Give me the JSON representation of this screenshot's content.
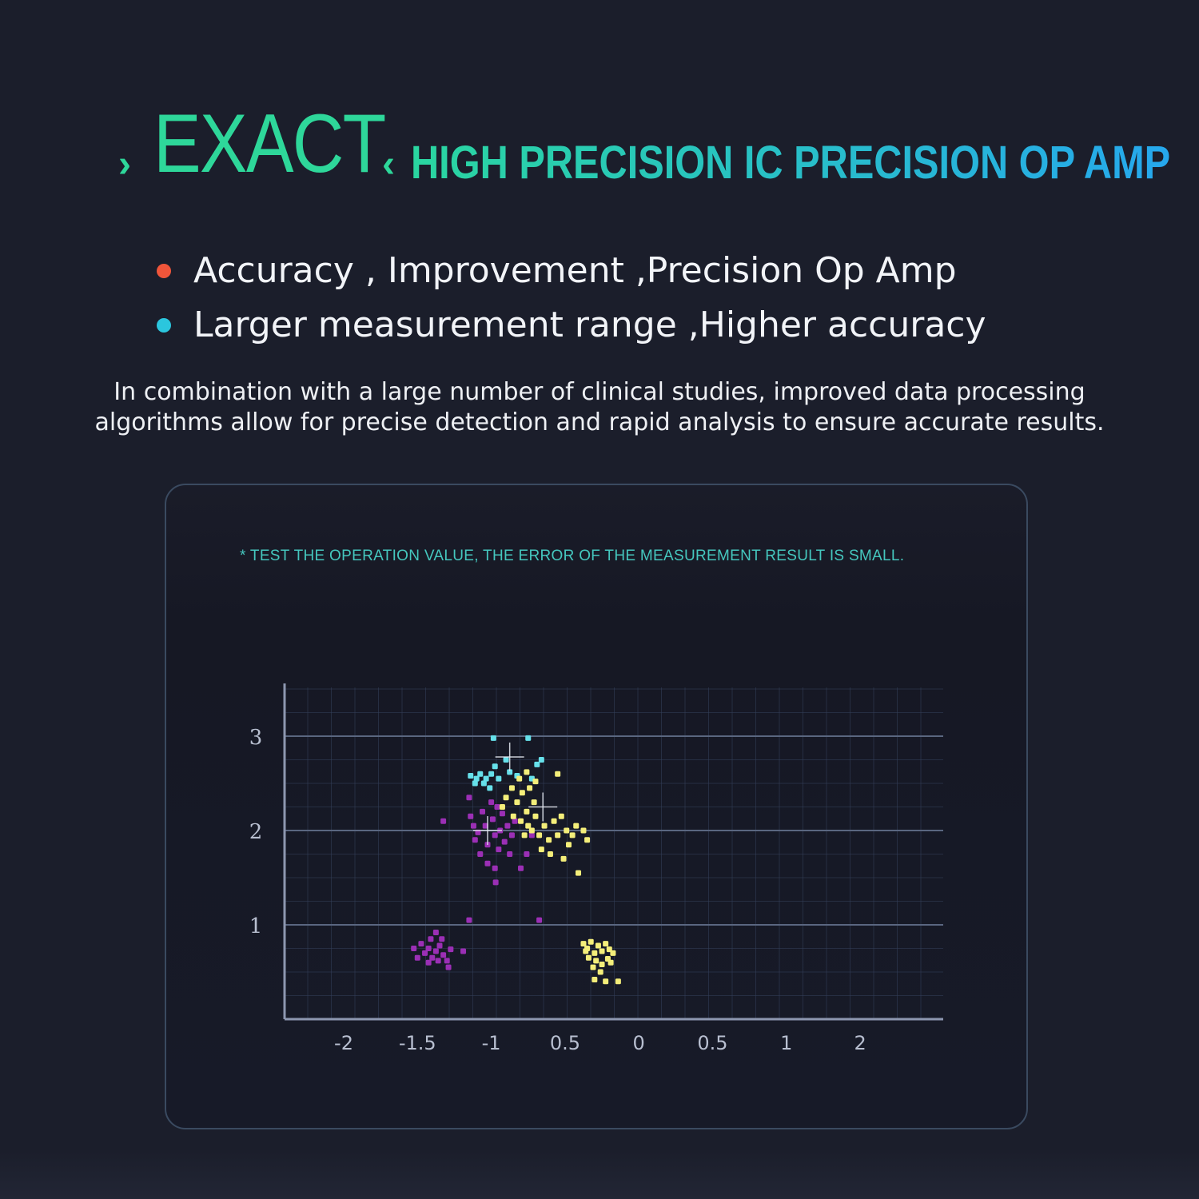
{
  "header": {
    "chevron_left": "›",
    "title": "EXACT",
    "chevron_right": "‹",
    "subtitle": "HIGH PRECISION IC PRECISION OP AMP"
  },
  "bullets": [
    {
      "text": "Accuracy , Improvement ,Precision Op Amp",
      "color": "#f0553a"
    },
    {
      "text": "Larger measurement range ,Higher accuracy",
      "color": "#2bc6de"
    }
  ],
  "description": "In combination with a large number of clinical studies, improved data processing algorithms allow for precise detection and rapid analysis to ensure accurate results.",
  "panel": {
    "note": "* TEST THE OPERATION VALUE, THE ERROR OF THE MEASUREMENT RESULT IS SMALL."
  },
  "chart_data": {
    "type": "scatter",
    "title": "",
    "xlabel": "",
    "ylabel": "",
    "x_ticks": [
      "-2",
      "-1.5",
      "-1",
      "0.5",
      "0",
      "0.5",
      "1",
      "2"
    ],
    "y_ticks": [
      "3",
      "2",
      "1"
    ],
    "ylim": [
      0,
      3.6
    ],
    "grid": true,
    "legend": "none",
    "colors": {
      "cyan": "#66e0ea",
      "purple": "#9b2fb5",
      "yellow": "#f4ee7a",
      "grid": "#34405a",
      "axis": "#8d97b0"
    },
    "note": "x values are given as positions along the tick sequence (tick index 0..7, with -2 at 0 and 2 at 7) because the printed tick labels are non-monotonic",
    "series": [
      {
        "color": "cyan",
        "points": [
          [
            2.03,
            2.98
          ],
          [
            2.5,
            2.98
          ],
          [
            1.72,
            2.58
          ],
          [
            1.8,
            2.55
          ],
          [
            1.85,
            2.6
          ],
          [
            1.93,
            2.55
          ],
          [
            2.0,
            2.6
          ],
          [
            1.9,
            2.5
          ],
          [
            2.05,
            2.68
          ],
          [
            2.1,
            2.55
          ],
          [
            2.25,
            2.62
          ],
          [
            2.35,
            2.58
          ],
          [
            2.55,
            2.55
          ],
          [
            2.62,
            2.7
          ],
          [
            2.68,
            2.75
          ],
          [
            2.2,
            2.75
          ],
          [
            1.98,
            2.45
          ],
          [
            1.78,
            2.5
          ]
        ]
      },
      {
        "color": "purple",
        "points": [
          [
            1.35,
            2.1
          ],
          [
            1.7,
            2.35
          ],
          [
            1.72,
            2.15
          ],
          [
            1.76,
            2.05
          ],
          [
            1.78,
            1.9
          ],
          [
            1.82,
            1.98
          ],
          [
            1.88,
            2.2
          ],
          [
            1.92,
            2.05
          ],
          [
            1.95,
            1.85
          ],
          [
            2.0,
            2.3
          ],
          [
            2.02,
            2.12
          ],
          [
            2.05,
            1.95
          ],
          [
            2.08,
            2.25
          ],
          [
            2.1,
            1.8
          ],
          [
            2.12,
            2.0
          ],
          [
            2.15,
            2.18
          ],
          [
            2.18,
            1.88
          ],
          [
            2.22,
            2.05
          ],
          [
            2.25,
            1.75
          ],
          [
            2.28,
            1.95
          ],
          [
            2.32,
            2.1
          ],
          [
            1.85,
            1.75
          ],
          [
            1.95,
            1.65
          ],
          [
            2.05,
            1.6
          ],
          [
            2.06,
            1.45
          ],
          [
            2.4,
            1.6
          ],
          [
            2.48,
            1.75
          ],
          [
            2.55,
            1.95
          ],
          [
            1.7,
            1.05
          ],
          [
            2.65,
            1.05
          ],
          [
            0.95,
            0.75
          ],
          [
            1.05,
            0.8
          ],
          [
            1.1,
            0.7
          ],
          [
            1.15,
            0.75
          ],
          [
            1.2,
            0.65
          ],
          [
            1.25,
            0.72
          ],
          [
            1.3,
            0.78
          ],
          [
            1.35,
            0.68
          ],
          [
            1.4,
            0.62
          ],
          [
            1.45,
            0.74
          ],
          [
            1.18,
            0.85
          ],
          [
            1.25,
            0.92
          ],
          [
            1.33,
            0.85
          ],
          [
            1.28,
            0.62
          ],
          [
            1.15,
            0.6
          ],
          [
            1.42,
            0.55
          ],
          [
            1.62,
            0.72
          ],
          [
            1.0,
            0.65
          ]
        ]
      },
      {
        "color": "yellow",
        "points": [
          [
            2.2,
            2.35
          ],
          [
            2.28,
            2.45
          ],
          [
            2.35,
            2.3
          ],
          [
            2.42,
            2.4
          ],
          [
            2.48,
            2.2
          ],
          [
            2.52,
            2.45
          ],
          [
            2.58,
            2.3
          ],
          [
            2.3,
            2.15
          ],
          [
            2.4,
            2.1
          ],
          [
            2.5,
            2.05
          ],
          [
            2.6,
            2.15
          ],
          [
            2.65,
            1.95
          ],
          [
            2.72,
            2.05
          ],
          [
            2.78,
            1.9
          ],
          [
            2.85,
            2.1
          ],
          [
            2.9,
            1.95
          ],
          [
            2.95,
            2.15
          ],
          [
            3.02,
            2.0
          ],
          [
            3.1,
            1.95
          ],
          [
            3.15,
            2.05
          ],
          [
            2.55,
            2.0
          ],
          [
            2.45,
            1.95
          ],
          [
            2.68,
            1.8
          ],
          [
            2.8,
            1.75
          ],
          [
            2.98,
            1.7
          ],
          [
            3.05,
            1.85
          ],
          [
            2.38,
            2.55
          ],
          [
            2.48,
            2.62
          ],
          [
            2.6,
            2.52
          ],
          [
            2.9,
            2.6
          ],
          [
            3.18,
            1.55
          ],
          [
            3.25,
            2.0
          ],
          [
            3.3,
            1.9
          ],
          [
            2.15,
            2.25
          ],
          [
            3.25,
            0.8
          ],
          [
            3.3,
            0.75
          ],
          [
            3.35,
            0.82
          ],
          [
            3.4,
            0.7
          ],
          [
            3.45,
            0.78
          ],
          [
            3.5,
            0.72
          ],
          [
            3.55,
            0.8
          ],
          [
            3.6,
            0.74
          ],
          [
            3.65,
            0.7
          ],
          [
            3.32,
            0.65
          ],
          [
            3.42,
            0.62
          ],
          [
            3.5,
            0.58
          ],
          [
            3.58,
            0.64
          ],
          [
            3.38,
            0.55
          ],
          [
            3.48,
            0.5
          ],
          [
            3.4,
            0.42
          ],
          [
            3.55,
            0.4
          ],
          [
            3.72,
            0.4
          ],
          [
            3.28,
            0.72
          ],
          [
            3.62,
            0.6
          ]
        ]
      }
    ],
    "crosshairs": [
      [
        2.25,
        2.78
      ],
      [
        1.95,
        2.0
      ],
      [
        2.7,
        2.25
      ]
    ]
  }
}
